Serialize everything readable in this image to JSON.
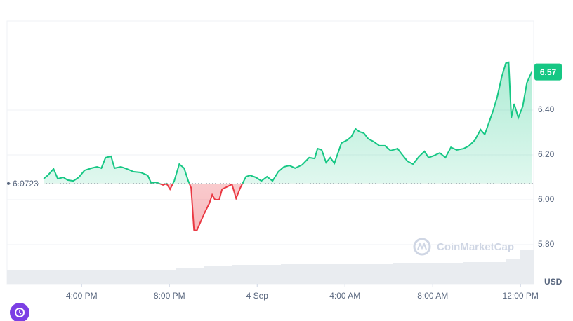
{
  "chart_data": {
    "type": "line",
    "colors": {
      "up": "#16c784",
      "down": "#ea3943"
    },
    "reference_line": 6.0723,
    "current_price_label": "6.57",
    "unit": "USD",
    "watermark": "CoinMarketCap",
    "xlim": [
      12.6,
      36.6
    ],
    "xticks": [
      {
        "value": 16,
        "label": "4:00 PM"
      },
      {
        "value": 20,
        "label": "8:00 PM"
      },
      {
        "value": 24,
        "label": "4 Sep"
      },
      {
        "value": 28,
        "label": "4:00 AM"
      },
      {
        "value": 32,
        "label": "8:00 AM"
      },
      {
        "value": 36,
        "label": "12:00 PM"
      }
    ],
    "ylim": [
      5.625,
      6.797
    ],
    "yticks": [
      {
        "value": 5.8,
        "label": "5.80"
      },
      {
        "value": 6,
        "label": "6.00"
      },
      {
        "value": 6.2,
        "label": "6.20"
      },
      {
        "value": 6.4,
        "label": "6.40"
      }
    ],
    "grid": true,
    "x": [
      14.27,
      14.46,
      14.72,
      14.91,
      15.17,
      15.36,
      15.62,
      15.87,
      16.13,
      16.45,
      16.7,
      16.9,
      17.09,
      17.34,
      17.5,
      17.79,
      18.05,
      18.37,
      18.69,
      19.01,
      19.17,
      19.39,
      19.71,
      19.87,
      20.03,
      20.22,
      20.45,
      20.67,
      20.86,
      20.99,
      21.12,
      21.25,
      21.44,
      21.63,
      21.82,
      21.95,
      22.08,
      22.27,
      22.4,
      22.59,
      22.85,
      23.04,
      23.23,
      23.49,
      23.68,
      23.94,
      24.19,
      24.45,
      24.7,
      24.96,
      25.22,
      25.47,
      25.73,
      26.05,
      26.37,
      26.62,
      26.75,
      26.94,
      27.14,
      27.33,
      27.52,
      27.84,
      28.1,
      28.29,
      28.48,
      28.67,
      28.86,
      29.06,
      29.31,
      29.57,
      29.82,
      30.08,
      30.4,
      30.59,
      30.85,
      31.1,
      31.36,
      31.62,
      31.81,
      32.06,
      32.32,
      32.58,
      32.83,
      33.09,
      33.41,
      33.66,
      33.92,
      34.18,
      34.37,
      34.56,
      34.75,
      34.94,
      35.14,
      35.33,
      35.46,
      35.58,
      35.71,
      35.9,
      36.1,
      36.29,
      36.51
    ],
    "values": [
      6.094,
      6.109,
      6.138,
      6.094,
      6.1,
      6.088,
      6.084,
      6.1,
      6.131,
      6.141,
      6.147,
      6.141,
      6.188,
      6.194,
      6.141,
      6.147,
      6.138,
      6.125,
      6.122,
      6.109,
      6.075,
      6.078,
      6.066,
      6.072,
      6.047,
      6.084,
      6.159,
      6.141,
      6.084,
      6.053,
      5.866,
      5.863,
      5.906,
      5.947,
      5.984,
      6.022,
      6.0,
      6.0,
      6.047,
      6.056,
      6.069,
      6.006,
      6.053,
      6.103,
      6.109,
      6.1,
      6.084,
      6.103,
      6.084,
      6.125,
      6.147,
      6.153,
      6.141,
      6.156,
      6.188,
      6.184,
      6.228,
      6.222,
      6.166,
      6.188,
      6.163,
      6.253,
      6.266,
      6.281,
      6.316,
      6.303,
      6.297,
      6.272,
      6.259,
      6.241,
      6.241,
      6.219,
      6.228,
      6.203,
      6.172,
      6.159,
      6.191,
      6.216,
      6.188,
      6.197,
      6.209,
      6.188,
      6.234,
      6.222,
      6.228,
      6.241,
      6.266,
      6.313,
      6.291,
      6.344,
      6.397,
      6.459,
      6.547,
      6.609,
      6.613,
      6.366,
      6.428,
      6.366,
      6.416,
      6.522,
      6.57
    ]
  }
}
